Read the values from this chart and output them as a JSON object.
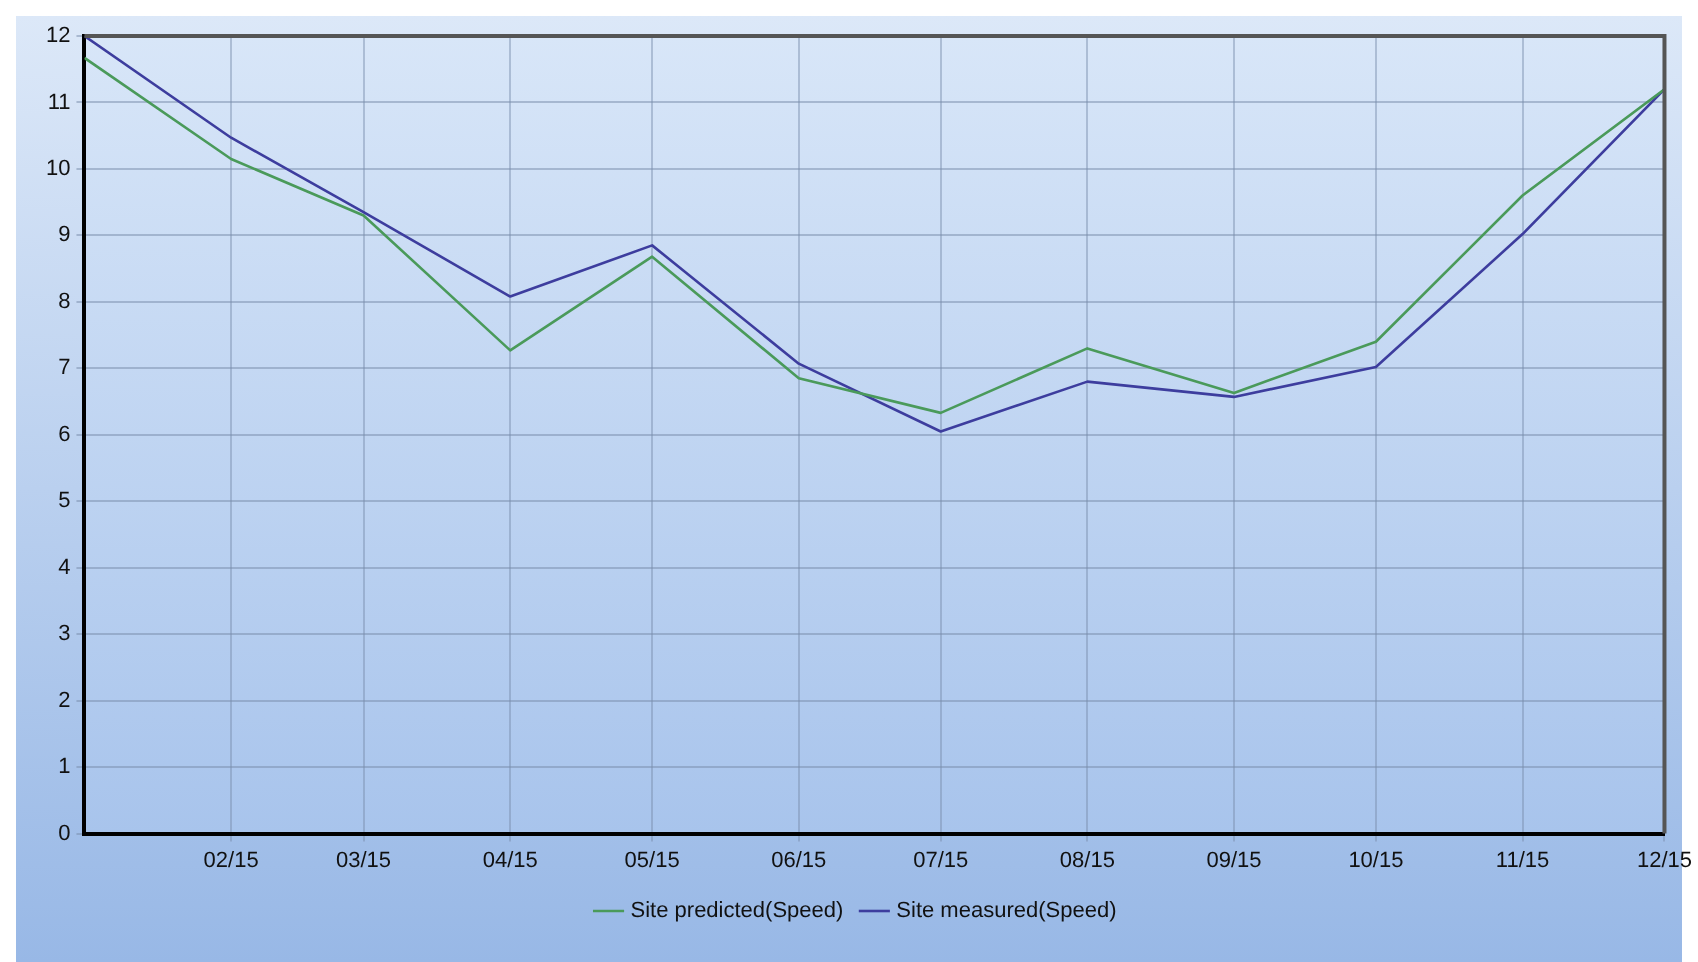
{
  "chart_data": {
    "type": "line",
    "x": [
      "--01-15",
      "--02-15",
      "--03-15",
      "--04-15",
      "--05-15",
      "--06-15",
      "--07-15",
      "--08-15",
      "--09-15",
      "--10-15",
      "--11-15",
      "--12-15"
    ],
    "series": [
      {
        "name": "Site predicted(Speed)",
        "color": "#4a9a5a",
        "values": [
          11.67,
          10.15,
          9.3,
          7.27,
          8.68,
          6.85,
          6.33,
          7.3,
          6.63,
          7.4,
          9.6,
          11.2
        ]
      },
      {
        "name": "Site measured(Speed)",
        "color": "#3d3d9e",
        "values": [
          12,
          10.47,
          9.35,
          8.08,
          8.85,
          7.07,
          6.05,
          6.8,
          6.57,
          7.02,
          9.02,
          11.2
        ]
      }
    ],
    "xlim": [
      "--01-15",
      "--12-15"
    ],
    "xticks": [
      {
        "value": "--02-15",
        "label": "02/15"
      },
      {
        "value": "--03-15",
        "label": "03/15"
      },
      {
        "value": "--04-15",
        "label": "04/15"
      },
      {
        "value": "--05-15",
        "label": "05/15"
      },
      {
        "value": "--06-15",
        "label": "06/15"
      },
      {
        "value": "--07-15",
        "label": "07/15"
      },
      {
        "value": "--08-15",
        "label": "08/15"
      },
      {
        "value": "--09-15",
        "label": "09/15"
      },
      {
        "value": "--10-15",
        "label": "10/15"
      },
      {
        "value": "--11-15",
        "label": "11/15"
      },
      {
        "value": "--12-15",
        "label": "12/15"
      }
    ],
    "ylim": [
      0,
      12
    ],
    "yticks": [
      0,
      1,
      2,
      3,
      4,
      5,
      6,
      7,
      8,
      9,
      10,
      11,
      12
    ],
    "grid": true,
    "legend": "bottom",
    "marker": "none",
    "line_style": "solid"
  }
}
